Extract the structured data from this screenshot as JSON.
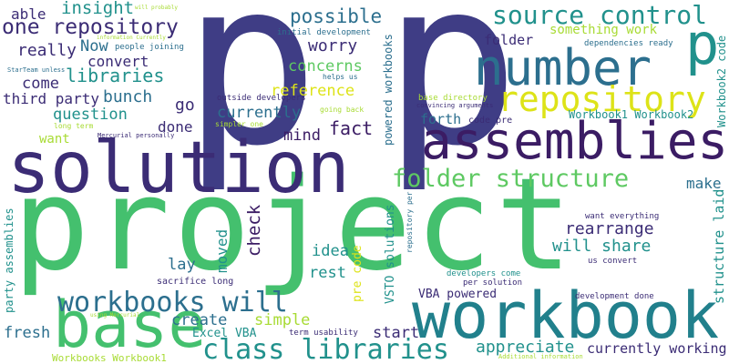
{
  "palette": {
    "dark_purple": "#440154",
    "indigo": "#3b2f80",
    "blue": "#31688e",
    "teal": "#21918c",
    "green": "#3aba76",
    "light_green": "#5ec962",
    "yellow_green": "#a8db34",
    "yellow": "#dde318"
  },
  "words": [
    {
      "text": "project",
      "color": "#44c06e",
      "id": "project"
    },
    {
      "text": "p",
      "color": "#3f3d85",
      "id": "p-left"
    },
    {
      "text": "p",
      "color": "#3f3d85",
      "id": "p-right"
    },
    {
      "text": "p",
      "color": "#21918c",
      "id": "p-small"
    },
    {
      "text": "workbook",
      "color": "#21808c",
      "id": "workbook"
    },
    {
      "text": "solution",
      "color": "#3b2c75",
      "id": "solution"
    },
    {
      "text": "base",
      "color": "#44c06e",
      "id": "base"
    },
    {
      "text": "assemblies",
      "color": "#3b1c64",
      "id": "assemblies"
    },
    {
      "text": "number",
      "color": "#2c6f8e",
      "id": "number"
    },
    {
      "text": "repository",
      "color": "#dde318",
      "id": "repository"
    },
    {
      "text": "source control",
      "color": "#21918c",
      "id": "source-control"
    },
    {
      "text": "folder structure",
      "color": "#5ec962",
      "id": "folder-structure"
    },
    {
      "text": "workbooks will",
      "color": "#2c6f8e",
      "id": "workbooks-will"
    },
    {
      "text": "class libraries",
      "color": "#21918c",
      "id": "class-libraries"
    },
    {
      "text": "one repository",
      "color": "#3b2c75",
      "id": "one-repository"
    },
    {
      "text": "libraries",
      "color": "#21918c",
      "id": "libraries"
    },
    {
      "text": "possible",
      "color": "#2c6f8e",
      "id": "possible"
    },
    {
      "text": "insight",
      "color": "#21918c",
      "id": "insight"
    },
    {
      "text": "able",
      "color": "#3b2c75",
      "id": "able"
    },
    {
      "text": "really",
      "color": "#3b2c75",
      "id": "really"
    },
    {
      "text": "Now",
      "color": "#2c6f8e",
      "id": "now"
    },
    {
      "text": "convert",
      "color": "#3b2c75",
      "id": "convert"
    },
    {
      "text": "come",
      "color": "#3b2c75",
      "id": "come"
    },
    {
      "text": "third party",
      "color": "#3b2c75",
      "id": "third-party"
    },
    {
      "text": "bunch",
      "color": "#2c6f8e",
      "id": "bunch"
    },
    {
      "text": "question",
      "color": "#21918c",
      "id": "question"
    },
    {
      "text": "want",
      "color": "#a8db34",
      "id": "want"
    },
    {
      "text": "go",
      "color": "#3b2c75",
      "id": "go"
    },
    {
      "text": "done",
      "color": "#3b2c75",
      "id": "done"
    },
    {
      "text": "worry",
      "color": "#3b2c75",
      "id": "worry"
    },
    {
      "text": "concerns",
      "color": "#5ec962",
      "id": "concerns"
    },
    {
      "text": "reference",
      "color": "#dde318",
      "id": "reference"
    },
    {
      "text": "currently",
      "color": "#2c6f8e",
      "id": "currently"
    },
    {
      "text": "mind",
      "color": "#3b1c64",
      "id": "mind"
    },
    {
      "text": "fact",
      "color": "#3b1c64",
      "id": "fact"
    },
    {
      "text": "check",
      "color": "#3b1c64",
      "id": "check"
    },
    {
      "text": "moved",
      "color": "#21918c",
      "id": "moved"
    },
    {
      "text": "lay",
      "color": "#2c6f8e",
      "id": "lay"
    },
    {
      "text": "idea",
      "color": "#21918c",
      "id": "idea"
    },
    {
      "text": "rest",
      "color": "#21918c",
      "id": "rest"
    },
    {
      "text": "create",
      "color": "#2c6f8e",
      "id": "create"
    },
    {
      "text": "simple",
      "color": "#a8db34",
      "id": "simple"
    },
    {
      "text": "fresh",
      "color": "#2c6f8e",
      "id": "fresh"
    },
    {
      "text": "start",
      "color": "#3b2c75",
      "id": "start"
    },
    {
      "text": "rearrange",
      "color": "#3b2c75",
      "id": "rearrange"
    },
    {
      "text": "will share",
      "color": "#21918c",
      "id": "will-share"
    },
    {
      "text": "appreciate",
      "color": "#21918c",
      "id": "appreciate"
    },
    {
      "text": "currently working",
      "color": "#3b2c75",
      "id": "currently-working"
    },
    {
      "text": "make",
      "color": "#2c6f8e",
      "id": "make"
    },
    {
      "text": "structure laid",
      "color": "#21918c",
      "id": "structure-laid"
    },
    {
      "text": "forth",
      "color": "#2c6f8e",
      "id": "forth"
    },
    {
      "text": "folder",
      "color": "#3b2c75",
      "id": "folder"
    },
    {
      "text": "something work",
      "color": "#a8db34",
      "id": "something-work"
    },
    {
      "text": "Workbook1 Workbook2",
      "color": "#21918c",
      "id": "workbook1-workbook2"
    },
    {
      "text": "Workbook2 code",
      "color": "#21918c",
      "id": "workbook2-code"
    },
    {
      "text": "powered workbooks",
      "color": "#2c6f8e",
      "id": "powered-workbooks"
    },
    {
      "text": "party assemblies",
      "color": "#21918c",
      "id": "party-assemblies"
    },
    {
      "text": "VSTO solutions",
      "color": "#21918c",
      "id": "vsto-solutions"
    },
    {
      "text": "pre code",
      "color": "#dde318",
      "id": "pre-code"
    },
    {
      "text": "VBA powered",
      "color": "#3b2c75",
      "id": "vba-powered"
    },
    {
      "text": "Excel VBA",
      "color": "#21918c",
      "id": "excel-vba"
    },
    {
      "text": "Workbooks Workbook1",
      "color": "#a8db34",
      "id": "workbooks-workbook1"
    },
    {
      "text": "sacrifice long",
      "color": "#3b2c75",
      "id": "sacrifice-long"
    },
    {
      "text": "term usability",
      "color": "#3b2c75",
      "id": "term-usability"
    },
    {
      "text": "code pre",
      "color": "#3b2c75",
      "id": "code-pre"
    },
    {
      "text": "base directory",
      "color": "#a8db34",
      "id": "base-directory"
    },
    {
      "text": "convincing arguments",
      "color": "#3b2c75",
      "id": "convincing-arguments"
    },
    {
      "text": "dependencies ready",
      "color": "#2c6f8e",
      "id": "dependencies-ready"
    },
    {
      "text": "want everything",
      "color": "#3b2c75",
      "id": "want-everything"
    },
    {
      "text": "developers come",
      "color": "#21918c",
      "id": "developers-come"
    },
    {
      "text": "per solution",
      "color": "#3b2c75",
      "id": "per-solution"
    },
    {
      "text": "us convert",
      "color": "#3b2c75",
      "id": "us-convert"
    },
    {
      "text": "development done",
      "color": "#3b2c75",
      "id": "development-done"
    },
    {
      "text": "Additional information",
      "color": "#a8db34",
      "id": "additional-information"
    },
    {
      "text": "repository per",
      "color": "#2c6f8e",
      "id": "repository-per"
    },
    {
      "text": "initial development",
      "color": "#2c6f8e",
      "id": "initial-development"
    },
    {
      "text": "helps us",
      "color": "#2c6f8e",
      "id": "helps-us"
    },
    {
      "text": "outside developers",
      "color": "#3b2c75",
      "id": "outside-developers"
    },
    {
      "text": "going back",
      "color": "#a8db34",
      "id": "going-back"
    },
    {
      "text": "simpler one",
      "color": "#a8db34",
      "id": "simpler-one"
    },
    {
      "text": "long term",
      "color": "#a8db34",
      "id": "long-term"
    },
    {
      "text": "Mercurial personally",
      "color": "#3b2c75",
      "id": "mercurial-personally"
    },
    {
      "text": "using Mercurial",
      "color": "#a8db34",
      "id": "using-mercurial"
    },
    {
      "text": "people joining",
      "color": "#2c6f8e",
      "id": "people-joining"
    },
    {
      "text": "information Currently",
      "color": "#a8db34",
      "id": "information-currently"
    },
    {
      "text": "StarTeam unless",
      "color": "#2c6f8e",
      "id": "starteam-unless"
    },
    {
      "text": "will probably",
      "color": "#a8db34",
      "id": "will-probably"
    }
  ]
}
